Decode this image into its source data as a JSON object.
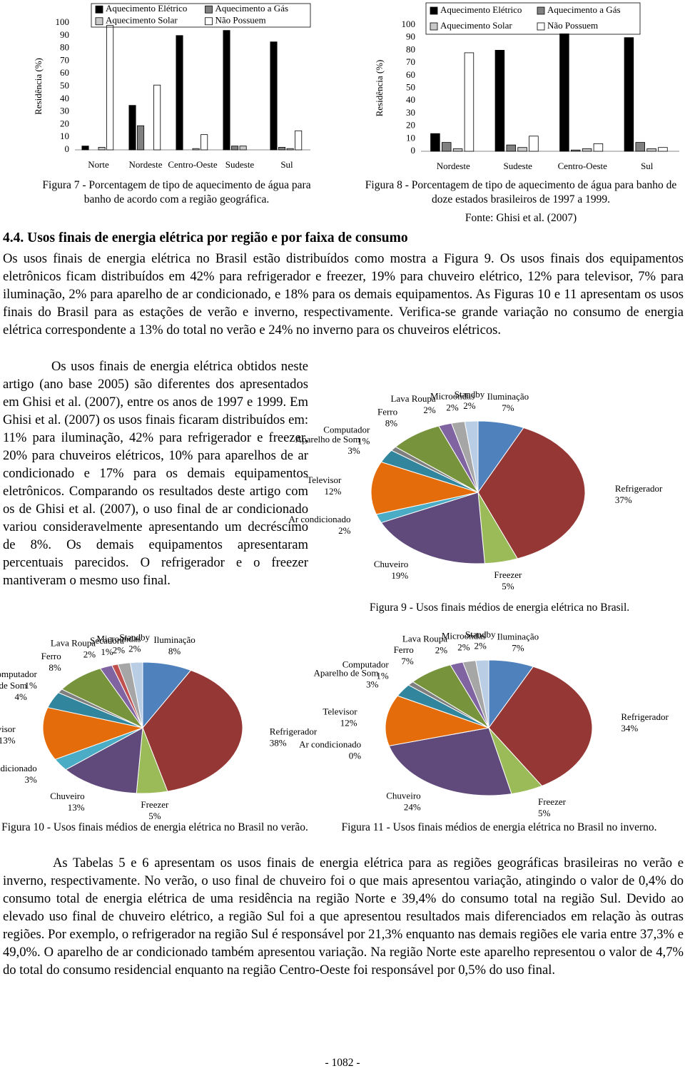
{
  "chart_data": [
    {
      "type": "bar",
      "y_label": "Residência (%)",
      "legend": "top",
      "categories": [
        "Norte",
        "Nordeste",
        "Centro-Oeste",
        "Sudeste",
        "Sul"
      ],
      "series": [
        {
          "name": "Aquecimento Elétrico",
          "color": "#000000",
          "values": [
            3,
            35,
            90,
            94,
            85
          ]
        },
        {
          "name": "Aquecimento a Gás",
          "color": "#808080",
          "values": [
            0,
            19,
            0,
            3,
            2
          ]
        },
        {
          "name": "Aquecimento Solar",
          "color": "#c8c8c8",
          "values": [
            2,
            0,
            1,
            3,
            1
          ]
        },
        {
          "name": "Não Possuem",
          "color": "#ffffff",
          "values": [
            98,
            51,
            12,
            0,
            15
          ]
        }
      ],
      "ylim": [
        0,
        100
      ],
      "yticks": [
        0,
        10,
        20,
        30,
        40,
        50,
        60,
        70,
        80,
        90,
        100
      ],
      "caption": "Figura 7 - Porcentagem de tipo de aquecimento de água para banho de acordo com a região geográfica."
    },
    {
      "type": "bar",
      "y_label": "Residência (%)",
      "legend": "top",
      "categories": [
        "Nordeste",
        "Sudeste",
        "Centro-Oeste",
        "Sul"
      ],
      "series": [
        {
          "name": "Aquecimento Elétrico",
          "color": "#000000",
          "values": [
            14,
            80,
            93,
            90
          ]
        },
        {
          "name": "Aquecimento a Gás",
          "color": "#808080",
          "values": [
            7,
            5,
            1,
            7
          ]
        },
        {
          "name": "Aquecimento Solar",
          "color": "#c8c8c8",
          "values": [
            2,
            3,
            2,
            2
          ]
        },
        {
          "name": "Não Possuem",
          "color": "#ffffff",
          "values": [
            78,
            12,
            6,
            3
          ]
        }
      ],
      "ylim": [
        0,
        100
      ],
      "yticks": [
        0,
        10,
        20,
        30,
        40,
        50,
        60,
        70,
        80,
        90,
        100
      ],
      "caption": "Figura 8 - Porcentagem de tipo de aquecimento de água para banho de doze estados brasileiros de 1997 a 1999.",
      "source": "Fonte: Ghisi et al. (2007)"
    },
    {
      "type": "pie",
      "categories": [
        "Iluminação",
        "Refrigerador",
        "Freezer",
        "Chuveiro",
        "Ar condicionado",
        "Televisor",
        "Aparelho de Som",
        "Computador",
        "Ferro",
        "Lava Roupa",
        "Microondas",
        "Standby"
      ],
      "values": [
        7,
        37,
        5,
        19,
        2,
        12,
        3,
        1,
        8,
        2,
        2,
        2
      ],
      "value_labels": [
        "7%",
        "37%",
        "5%",
        "19%",
        "2%",
        "12%",
        "3%",
        "1%",
        "8%",
        "2%",
        "2%",
        "2%"
      ],
      "colors": [
        "#4f81bd",
        "#953735",
        "#9bbb59",
        "#604a7b",
        "#4bacc6",
        "#e46c0a",
        "#31859c",
        "#7f7f7f",
        "#77933c",
        "#8064a2",
        "#a6a6a6",
        "#b9cde5"
      ],
      "caption": "Figura 9 - Usos finais médios de energia elétrica no Brasil."
    },
    {
      "type": "pie",
      "categories": [
        "Iluminação",
        "Refrigerador",
        "Freezer",
        "Chuveiro",
        "Ar condicionado",
        "Televisor",
        "Aparelho de Som",
        "Computador",
        "Ferro",
        "Lava Roupa",
        "Secadora",
        "Microondas",
        "Standby"
      ],
      "values": [
        8,
        38,
        5,
        13,
        3,
        13,
        4,
        1,
        8,
        2,
        1,
        2,
        2
      ],
      "value_labels": [
        "8%",
        "38%",
        "5%",
        "13%",
        "3%",
        "13%",
        "4%",
        "1%",
        "8%",
        "2%",
        "1%",
        "2%",
        "2%"
      ],
      "colors": [
        "#4f81bd",
        "#953735",
        "#9bbb59",
        "#604a7b",
        "#4bacc6",
        "#e46c0a",
        "#31859c",
        "#7f7f7f",
        "#77933c",
        "#8064a2",
        "#c0504d",
        "#a6a6a6",
        "#b9cde5"
      ],
      "caption": "Figura 10 - Usos finais médios de energia elétrica no Brasil no verão."
    },
    {
      "type": "pie",
      "categories": [
        "Iluminação",
        "Refrigerador",
        "Freezer",
        "Chuveiro",
        "Ar condicionado",
        "Televisor",
        "Aparelho de Som",
        "Computador",
        "Ferro",
        "Lava Roupa",
        "Microondas",
        "Standby"
      ],
      "values": [
        7,
        34,
        5,
        24,
        0,
        12,
        3,
        1,
        7,
        2,
        2,
        2
      ],
      "value_labels": [
        "7%",
        "34%",
        "5%",
        "24%",
        "0%",
        "12%",
        "3%",
        "1%",
        "7%",
        "2%",
        "2%",
        "2%"
      ],
      "colors": [
        "#4f81bd",
        "#953735",
        "#9bbb59",
        "#604a7b",
        "#4bacc6",
        "#e46c0a",
        "#31859c",
        "#7f7f7f",
        "#77933c",
        "#8064a2",
        "#a6a6a6",
        "#b9cde5"
      ],
      "caption": "Figura 11 - Usos finais médios de energia elétrica no Brasil no inverno."
    }
  ],
  "heading": "4.4. Usos finais de energia elétrica por região e por faixa de consumo",
  "paragraphs": [
    "Os usos finais de energia elétrica no Brasil estão distribuídos como mostra a Figura 9. Os usos finais dos equipamentos eletrônicos ficam distribuídos em 42% para refrigerador e freezer, 19% para chuveiro elétrico, 12% para televisor, 7% para iluminação, 2% para aparelho de ar condicionado, e 18% para os demais equipamentos. As Figuras 10 e 11 apresentam os usos finais do Brasil para as estações de verão e inverno, respectivamente. Verifica-se grande variação no consumo de energia elétrica correspondente a 13% do total no verão e 24% no inverno para os chuveiros elétricos.",
    "Os usos finais de energia elétrica obtidos neste artigo (ano base 2005) são diferentes dos apresentados em Ghisi et al. (2007), entre os anos de 1997 e 1999. Em Ghisi et al. (2007) os usos finais ficaram distribuídos em: 11% para iluminação, 42% para refrigerador e freezer, 20% para chuveiros elétricos, 10% para aparelhos de ar condicionado e 17% para os demais equipamentos eletrônicos. Comparando os resultados deste artigo com os de Ghisi et al. (2007), o uso final de ar condicionado variou consideravelmente apresentando um decréscimo de 8%. Os demais equipamentos apresentaram percentuais parecidos. O refrigerador e o freezer mantiveram o mesmo uso final.",
    "As Tabelas 5 e 6 apresentam os usos finais de energia elétrica para as regiões geográficas brasileiras no verão e inverno, respectivamente. No verão, o uso final de chuveiro foi o que mais apresentou variação, atingindo o valor de 0,4% do consumo total de energia elétrica de uma residência na região Norte e 39,4% do consumo total na região Sul. Devido ao elevado uso final de chuveiro elétrico, a região Sul foi a que apresentou resultados mais diferenciados em relação às outras regiões. Por exemplo, o refrigerador na região Sul é responsável por 21,3% enquanto nas demais regiões ele varia entre 37,3% e 49,0%. O aparelho de ar condicionado também apresentou variação. Na região Norte este aparelho representou o valor de 4,7% do total do consumo residencial enquanto na região Centro-Oeste foi responsável por 0,5% do uso final."
  ],
  "page_number": "- 1082 -"
}
